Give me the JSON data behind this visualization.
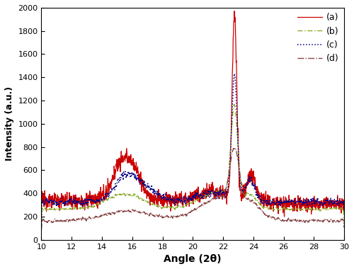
{
  "xlabel": "Angle (2θ)",
  "ylabel": "Intensity (a.u.)",
  "xlim": [
    10,
    30
  ],
  "ylim": [
    0,
    2000
  ],
  "yticks": [
    0,
    200,
    400,
    600,
    800,
    1000,
    1200,
    1400,
    1600,
    1800,
    2000
  ],
  "xticks": [
    10,
    12,
    14,
    16,
    18,
    20,
    22,
    24,
    26,
    28,
    30
  ],
  "legend_labels": [
    "(a)",
    "(b)",
    "(c)",
    "(d)"
  ],
  "line_colors": [
    "#cc0000",
    "#88aa22",
    "#000088",
    "#884444"
  ],
  "background_color": "#ffffff",
  "seed": 12345
}
